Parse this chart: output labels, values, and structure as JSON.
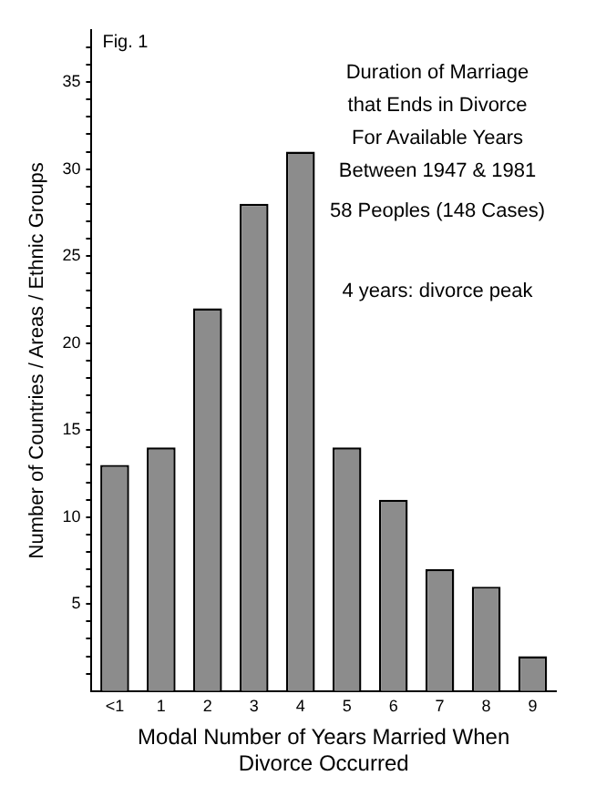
{
  "chart_data": {
    "type": "bar",
    "title": "Duration of Marriage that Ends in Divorce",
    "subtitle": "For Available Years Between 1947 & 1981",
    "annotations": [
      "Fig. 1",
      "58 Peoples (148 Cases)",
      "4 years: divorce peak"
    ],
    "xlabel": "Modal Number of Years Married When Divorce Occurred",
    "ylabel": "Number of Countries / Areas / Ethnic Groups",
    "categories": [
      "<1",
      "1",
      "2",
      "3",
      "4",
      "5",
      "6",
      "7",
      "8",
      "9"
    ],
    "values": [
      13,
      14,
      22,
      28,
      31,
      14,
      11,
      7,
      6,
      2
    ],
    "color": "#8c8c8c",
    "ylim": [
      0,
      38
    ],
    "yticks": [
      {
        "value": 1,
        "label": null
      },
      {
        "value": 2,
        "label": null
      },
      {
        "value": 3,
        "label": null
      },
      {
        "value": 4,
        "label": null
      },
      5,
      {
        "value": 6,
        "label": null
      },
      {
        "value": 7,
        "label": null
      },
      {
        "value": 8,
        "label": null
      },
      {
        "value": 9,
        "label": null
      },
      10,
      {
        "value": 11,
        "label": null
      },
      {
        "value": 12,
        "label": null
      },
      {
        "value": 13,
        "label": null
      },
      {
        "value": 14,
        "label": null
      },
      15,
      {
        "value": 16,
        "label": null
      },
      {
        "value": 17,
        "label": null
      },
      {
        "value": 18,
        "label": null
      },
      {
        "value": 19,
        "label": null
      },
      20,
      {
        "value": 21,
        "label": null
      },
      {
        "value": 22,
        "label": null
      },
      {
        "value": 23,
        "label": null
      },
      {
        "value": 24,
        "label": null
      },
      25,
      {
        "value": 26,
        "label": null
      },
      {
        "value": 27,
        "label": null
      },
      {
        "value": 28,
        "label": null
      },
      {
        "value": 29,
        "label": null
      },
      30,
      {
        "value": 31,
        "label": null
      },
      {
        "value": 32,
        "label": null
      },
      {
        "value": 33,
        "label": null
      },
      {
        "value": 34,
        "label": null
      },
      35,
      {
        "value": 36,
        "label": null
      },
      {
        "value": 37,
        "label": null
      }
    ],
    "grid": false,
    "legend": false
  }
}
